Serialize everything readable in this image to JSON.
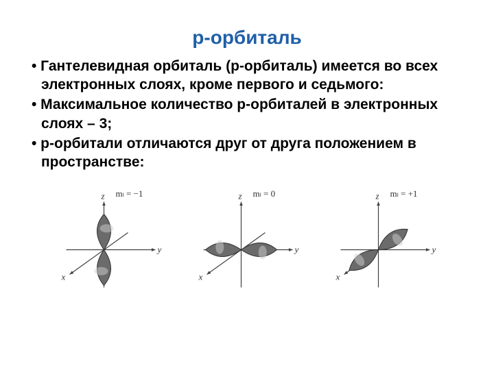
{
  "title": {
    "text": "р-орбиталь",
    "color": "#1f5fa8",
    "fontsize": 28
  },
  "bullets": {
    "fontsize": 21,
    "items": [
      "•   Гантелевидная орбиталь (р-орбиталь) имеется во всех электронных слоях, кроме первого и седьмого:",
      "•   Максимальное количество  р-орбиталей в электронных слоях – 3;",
      "•   р-орбитали отличаются друг от друга положением в пространстве:"
    ]
  },
  "diagrams": {
    "width": 170,
    "height": 170,
    "axis_color": "#404040",
    "axis_width": 1.2,
    "lobe_fill": "#6b6b6b",
    "lobe_stroke": "#303030",
    "label_color": "#303030",
    "label_fontsize": 13,
    "items": [
      {
        "ml_label": "mₗ = −1",
        "orientation": "z",
        "axes": {
          "x": "x",
          "y": "y",
          "z": "z"
        }
      },
      {
        "ml_label": "mₗ = 0",
        "orientation": "y",
        "axes": {
          "x": "x",
          "y": "y",
          "z": "z"
        }
      },
      {
        "ml_label": "mₗ = +1",
        "orientation": "xy",
        "axes": {
          "x": "x",
          "y": "y",
          "z": "z"
        }
      }
    ]
  }
}
